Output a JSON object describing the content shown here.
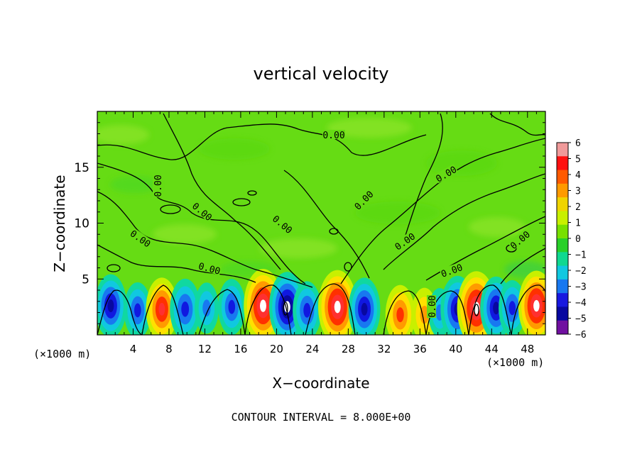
{
  "chart_data": {
    "type": "heatmap",
    "title": "vertical velocity",
    "xlabel": "X−coordinate",
    "ylabel": "Z−coordinate",
    "x_unit_label_left": "(×1000 m)",
    "x_unit_label_right": "(×1000 m)",
    "xlim": [
      0,
      50
    ],
    "ylim": [
      0,
      20
    ],
    "x_ticks": [
      4,
      8,
      12,
      16,
      20,
      24,
      28,
      32,
      36,
      40,
      44,
      48
    ],
    "y_ticks": [
      5,
      10,
      15
    ],
    "colorbar_ticks": [
      "6",
      "5",
      "4",
      "3",
      "2",
      "1",
      "0",
      "−1",
      "−2",
      "−3",
      "−4",
      "−5",
      "−6"
    ],
    "colorbar_range": [
      -6,
      6
    ],
    "colorbar_colors": [
      "#f09a9a",
      "#ff1010",
      "#ff5a00",
      "#ff9a00",
      "#f0d400",
      "#c8f000",
      "#78e000",
      "#28d028",
      "#10d890",
      "#10c8e0",
      "#1878f0",
      "#1818e0",
      "#0808a0",
      "#7010a0"
    ],
    "contour_label": "0.00",
    "contour_interval_text": "CONTOUR INTERVAL = 8.000E+00",
    "cells": [
      {
        "x": 1.5,
        "z": 2.6,
        "w": -4.5
      },
      {
        "x": 4.5,
        "z": 2.2,
        "w": -3.5
      },
      {
        "x": 7.2,
        "z": 2.3,
        "w": 4.5
      },
      {
        "x": 9.8,
        "z": 2.3,
        "w": -4.2
      },
      {
        "x": 12.2,
        "z": 2.4,
        "w": -2.8
      },
      {
        "x": 15.0,
        "z": 2.5,
        "w": -3.5
      },
      {
        "x": 18.5,
        "z": 2.6,
        "w": 6.0
      },
      {
        "x": 21.2,
        "z": 2.5,
        "w": -5.5
      },
      {
        "x": 23.4,
        "z": 2.2,
        "w": -3.8
      },
      {
        "x": 26.8,
        "z": 2.5,
        "w": 6.0
      },
      {
        "x": 29.8,
        "z": 2.3,
        "w": -4.5
      },
      {
        "x": 33.8,
        "z": 1.8,
        "w": 4.0
      },
      {
        "x": 36.5,
        "z": 1.8,
        "w": 3.2
      },
      {
        "x": 38.2,
        "z": 2.0,
        "w": -2.5
      },
      {
        "x": 40.2,
        "z": 2.3,
        "w": -5.0
      },
      {
        "x": 42.3,
        "z": 2.4,
        "w": 6.0
      },
      {
        "x": 44.5,
        "z": 2.4,
        "w": -4.5
      },
      {
        "x": 46.3,
        "z": 2.4,
        "w": -3.5
      },
      {
        "x": 49.0,
        "z": 2.6,
        "w": 5.5
      }
    ]
  }
}
